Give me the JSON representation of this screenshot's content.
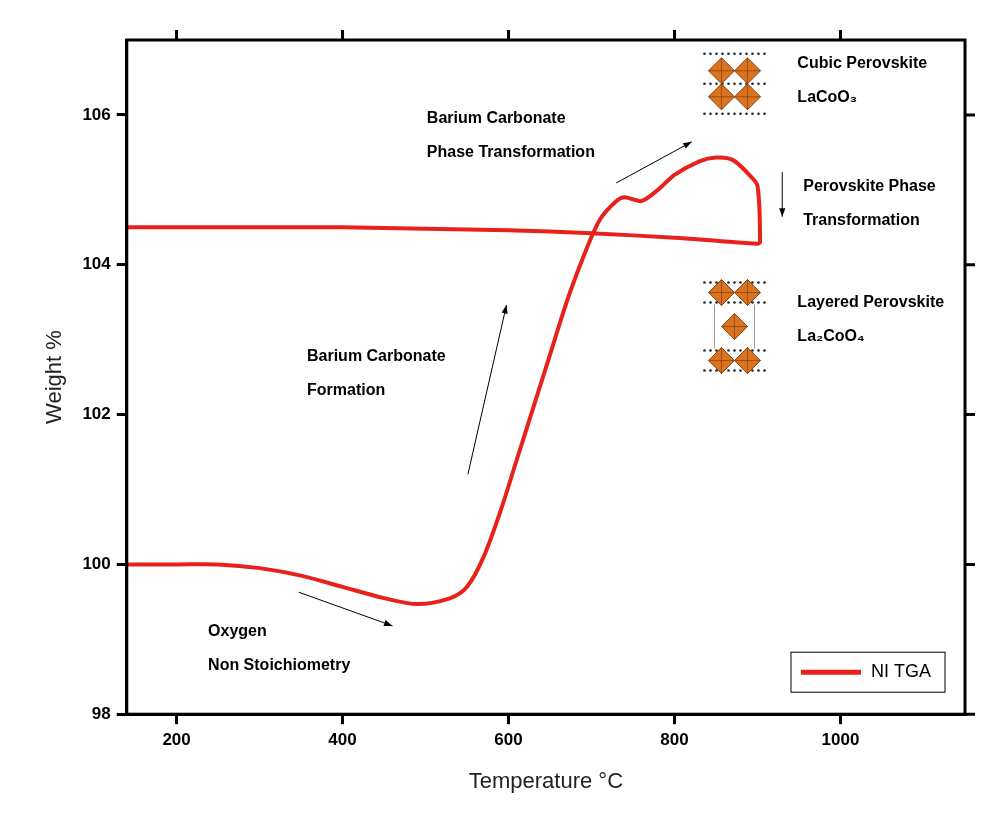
{
  "chart_data": {
    "type": "line",
    "x_label": "Temperature °C",
    "y_label": "Weight %",
    "x": [
      140,
      200,
      250,
      300,
      350,
      400,
      450,
      490,
      530,
      550,
      570,
      590,
      610,
      630,
      650,
      670,
      690,
      710,
      730,
      740,
      760,
      780,
      800,
      830,
      850,
      870,
      890,
      900,
      903,
      900,
      850,
      800,
      700,
      600,
      500,
      400,
      300,
      200,
      140
    ],
    "series": [
      {
        "name": "NI TGA",
        "color": "#e8211d",
        "values": [
          100.0,
          100.0,
          100.0,
          99.95,
          99.85,
          99.7,
          99.55,
          99.47,
          99.55,
          99.7,
          100.1,
          100.7,
          101.4,
          102.1,
          102.8,
          103.5,
          104.1,
          104.6,
          104.85,
          104.9,
          104.85,
          105.0,
          105.2,
          105.38,
          105.43,
          105.4,
          105.2,
          105.05,
          104.3,
          104.28,
          104.32,
          104.36,
          104.42,
          104.46,
          104.48,
          104.5,
          104.5,
          104.5,
          104.5
        ]
      }
    ],
    "xlim": [
      140,
      1150
    ],
    "xticks": [
      200,
      400,
      600,
      800,
      1000
    ],
    "ylim": [
      98,
      107
    ],
    "yticks": [
      98,
      100,
      102,
      104,
      106
    ],
    "grid": false,
    "legend": "lower right",
    "annotations": [
      "Oxygen\nNon Stoichiometry",
      "Barium Carbonate\nFormation",
      "Barium Carbonate\nPhase Transformation",
      "Cubic Perovskite\nLaCoO₃",
      "Perovskite Phase\nTransformation",
      "Layered Perovskite\nLa₂CoO₄"
    ]
  }
}
